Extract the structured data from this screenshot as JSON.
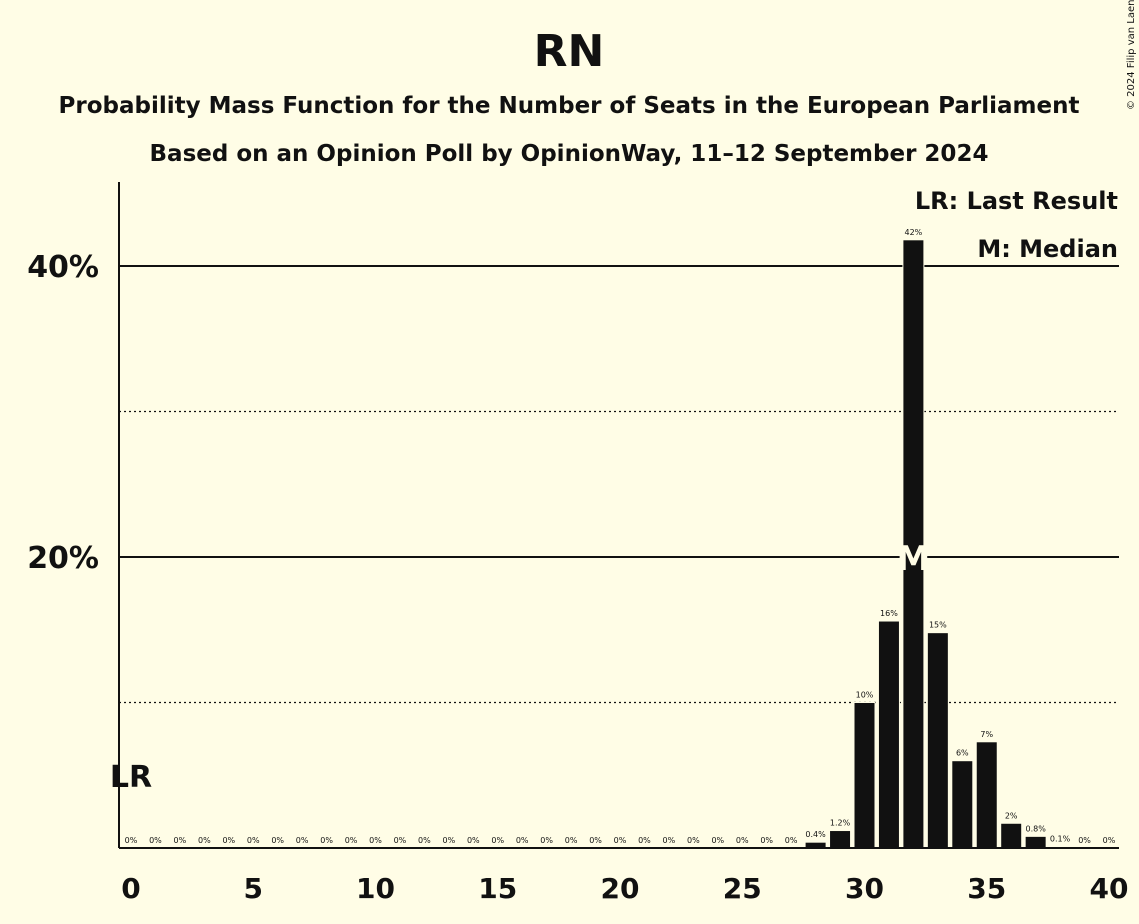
{
  "chart_data": {
    "type": "bar",
    "title": "RN",
    "subtitle_1": "Probability Mass Function for the Number of Seats in the European Parliament",
    "subtitle_2": "Based on an Opinion Poll by OpinionWay, 11–12 September 2024",
    "copyright": "© 2024 Filip van Laenen",
    "legend": {
      "last_result": "LR: Last Result",
      "median": "M: Median"
    },
    "x": [
      0,
      1,
      2,
      3,
      4,
      5,
      6,
      7,
      8,
      9,
      10,
      11,
      12,
      13,
      14,
      15,
      16,
      17,
      18,
      19,
      20,
      21,
      22,
      23,
      24,
      25,
      26,
      27,
      28,
      29,
      30,
      31,
      32,
      33,
      34,
      35,
      36,
      37,
      38,
      39,
      40
    ],
    "values": [
      0,
      0,
      0,
      0,
      0,
      0,
      0,
      0,
      0,
      0,
      0,
      0,
      0,
      0,
      0,
      0,
      0,
      0,
      0,
      0,
      0,
      0,
      0,
      0,
      0,
      0,
      0,
      0,
      0.4,
      1.2,
      10,
      15.6,
      41.8,
      14.8,
      6,
      7.3,
      1.7,
      0.8,
      0.1,
      0,
      0
    ],
    "value_labels": [
      "0%",
      "0%",
      "0%",
      "0%",
      "0%",
      "0%",
      "0%",
      "0%",
      "0%",
      "0%",
      "0%",
      "0%",
      "0%",
      "0%",
      "0%",
      "0%",
      "0%",
      "0%",
      "0%",
      "0%",
      "0%",
      "0%",
      "0%",
      "0%",
      "0%",
      "0%",
      "0%",
      "0%",
      "0.4%",
      "1.2%",
      "10%",
      "16%",
      "42%",
      "15%",
      "6%",
      "7%",
      "2%",
      "0.8%",
      "0.1%",
      "0%",
      "0%"
    ],
    "xticks": [
      "0",
      "5",
      "10",
      "15",
      "20",
      "25",
      "30",
      "35",
      "40"
    ],
    "yticks": [
      "20%",
      "40%"
    ],
    "ylim": [
      0,
      45
    ],
    "xlim": [
      0,
      40
    ],
    "solid_gridlines": [
      20,
      40
    ],
    "dotted_gridlines": [
      10,
      30
    ],
    "last_result": {
      "seat": 0,
      "label": "LR"
    },
    "median": {
      "seat": 32,
      "label": "M"
    },
    "colors": {
      "background": "#fffde6",
      "bar": "#111111",
      "text": "#111111"
    }
  }
}
